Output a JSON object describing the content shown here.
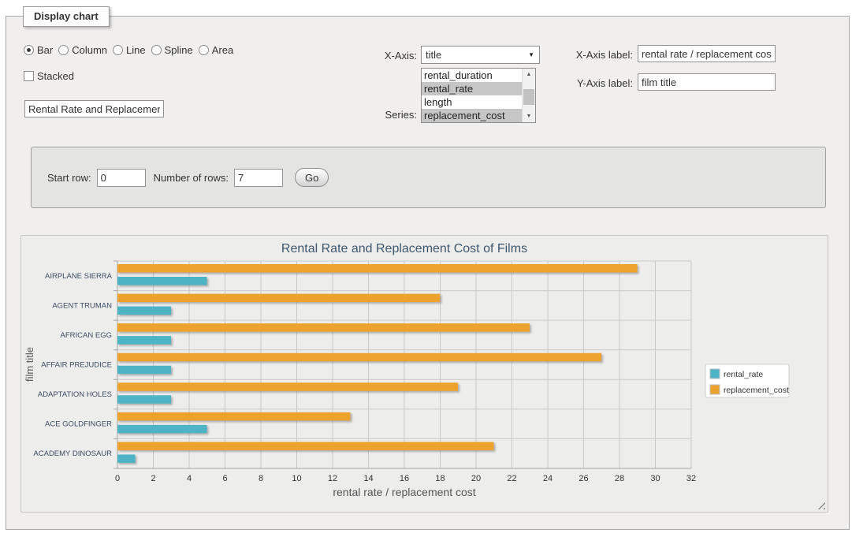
{
  "fieldset": {
    "legend": "Display chart"
  },
  "icons": {
    "dropdown_arrow": "▼",
    "scroll_up": "▲",
    "scroll_down": "▼",
    "resize_grip": "diagonal-grip"
  },
  "controls": {
    "chart_types": {
      "options": [
        {
          "label": "Bar",
          "selected": true
        },
        {
          "label": "Column",
          "selected": false
        },
        {
          "label": "Line",
          "selected": false
        },
        {
          "label": "Spline",
          "selected": false
        },
        {
          "label": "Area",
          "selected": false
        }
      ]
    },
    "stacked": {
      "label": "Stacked",
      "checked": false
    },
    "chart_title_input": {
      "value": "Rental Rate and Replacement Cost of Films"
    },
    "x_axis": {
      "label": "X-Axis:",
      "selected_value": "title"
    },
    "series": {
      "label": "Series:",
      "options": [
        {
          "label": "rental_duration",
          "selected": false
        },
        {
          "label": "rental_rate",
          "selected": true
        },
        {
          "label": "length",
          "selected": false
        },
        {
          "label": "replacement_cost",
          "selected": true
        }
      ]
    },
    "x_axis_label": {
      "label": "X-Axis label:",
      "value": "rental rate / replacement cost"
    },
    "y_axis_label": {
      "label": "Y-Axis label:",
      "value": "film title"
    }
  },
  "row_panel": {
    "start_row": {
      "label": "Start row:",
      "value": "0"
    },
    "num_rows": {
      "label": "Number of rows:",
      "value": "7"
    },
    "go_button": "Go"
  },
  "chart_data": {
    "type": "bar",
    "title": "Rental Rate and Replacement Cost of Films",
    "categories": [
      "AIRPLANE SIERRA",
      "AGENT TRUMAN",
      "AFRICAN EGG",
      "AFFAIR PREJUDICE",
      "ADAPTATION HOLES",
      "ACE GOLDFINGER",
      "ACADEMY DINOSAUR"
    ],
    "series": [
      {
        "name": "rental_rate",
        "color": "#4db4c5",
        "values": [
          4.99,
          2.99,
          2.99,
          2.99,
          2.99,
          4.99,
          0.99
        ]
      },
      {
        "name": "replacement_cost",
        "color": "#eca32e",
        "values": [
          28.99,
          17.99,
          22.99,
          26.99,
          18.99,
          12.99,
          20.99
        ]
      }
    ],
    "xlabel": "rental rate / replacement cost",
    "ylabel": "film title",
    "xlim": [
      0,
      32
    ],
    "xtick_step": 2,
    "grid": true,
    "legend_position": "right",
    "colors": {
      "title": "#3e576f",
      "axis_title": "#555555",
      "tick_label": "#333333",
      "category_label": "#3d4c63",
      "gridline": "#c9c9c9",
      "axis_line": "#a6a6a6",
      "plot_bg": "#ededec"
    }
  }
}
